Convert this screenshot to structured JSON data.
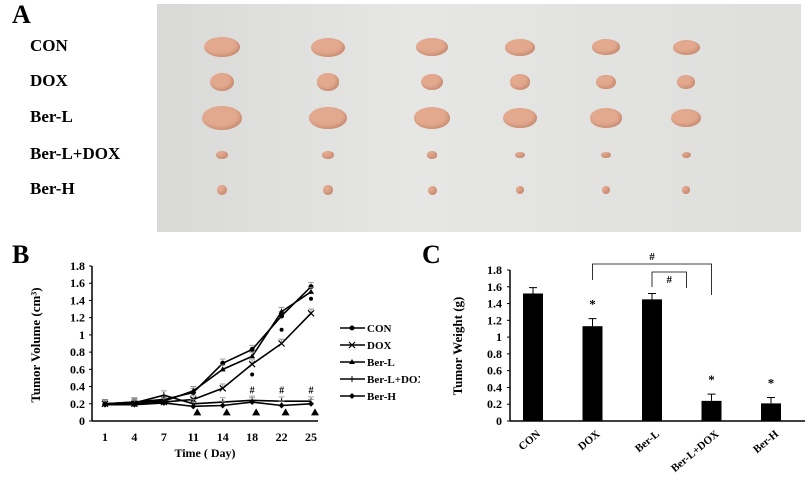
{
  "panels": {
    "a": "A",
    "b": "B",
    "c": "C"
  },
  "photo": {
    "rows": [
      "CON",
      "DOX",
      "Ber-L",
      "Ber-L+DOX",
      "Ber-H"
    ],
    "tumor_color": "#e2a98e",
    "background_color": "#e0e0de"
  },
  "chart_data": [
    {
      "type": "line",
      "xlabel": "Time ( Day)",
      "ylabel": "Tumor Volume (cm³)",
      "categories": [
        "1",
        "4",
        "7",
        "11",
        "14",
        "18",
        "22",
        "25"
      ],
      "ylim": [
        0,
        1.8
      ],
      "yticks": [
        "0",
        "0.2",
        "0.4",
        "0.6",
        "0.8",
        "1",
        "1.2",
        "1.4",
        "1.6",
        "1.8"
      ],
      "legend": "right",
      "series": [
        {
          "name": "CON",
          "marker": "circle",
          "values": [
            0.2,
            0.22,
            0.25,
            0.33,
            0.67,
            0.83,
            1.22,
            1.56
          ]
        },
        {
          "name": "DOX",
          "marker": "x",
          "values": [
            0.2,
            0.2,
            0.22,
            0.25,
            0.38,
            0.66,
            0.9,
            1.25
          ]
        },
        {
          "name": "Ber-L",
          "marker": "triangle",
          "values": [
            0.2,
            0.22,
            0.23,
            0.35,
            0.6,
            0.75,
            1.27,
            1.5
          ]
        },
        {
          "name": "Ber-L+DOX",
          "marker": "plus",
          "values": [
            0.2,
            0.21,
            0.3,
            0.2,
            0.22,
            0.24,
            0.23,
            0.23
          ]
        },
        {
          "name": "Ber-H",
          "marker": "diamond",
          "values": [
            0.19,
            0.19,
            0.21,
            0.17,
            0.18,
            0.22,
            0.18,
            0.2
          ]
        }
      ],
      "annotations": {
        "hash": "#",
        "hash_days": [
          "18",
          "22",
          "25"
        ],
        "dot_days": [
          "18",
          "22",
          "25"
        ],
        "triangle_days": [
          "11",
          "14",
          "18",
          "22",
          "25"
        ]
      }
    },
    {
      "type": "bar",
      "xlabel": "",
      "ylabel": "Tumor Weight (g)",
      "categories": [
        "CON",
        "DOX",
        "Ber-L",
        "Ber-L+DOX",
        "Ber-H"
      ],
      "values": [
        1.52,
        1.13,
        1.45,
        0.24,
        0.21
      ],
      "errors": [
        0.07,
        0.09,
        0.07,
        0.08,
        0.07
      ],
      "ylim": [
        0,
        1.8
      ],
      "yticks": [
        "0",
        "0.2",
        "0.4",
        "0.6",
        "0.8",
        "1",
        "1.2",
        "1.4",
        "1.6",
        "1.8"
      ],
      "stars": [
        "DOX",
        "Ber-L+DOX",
        "Ber-H"
      ],
      "star": "*",
      "brackets": [
        {
          "from": "DOX",
          "to": "Ber-L+DOX",
          "label": "#"
        },
        {
          "from": "Ber-L",
          "to": "Ber-L+DOX",
          "label": "#"
        }
      ]
    }
  ]
}
